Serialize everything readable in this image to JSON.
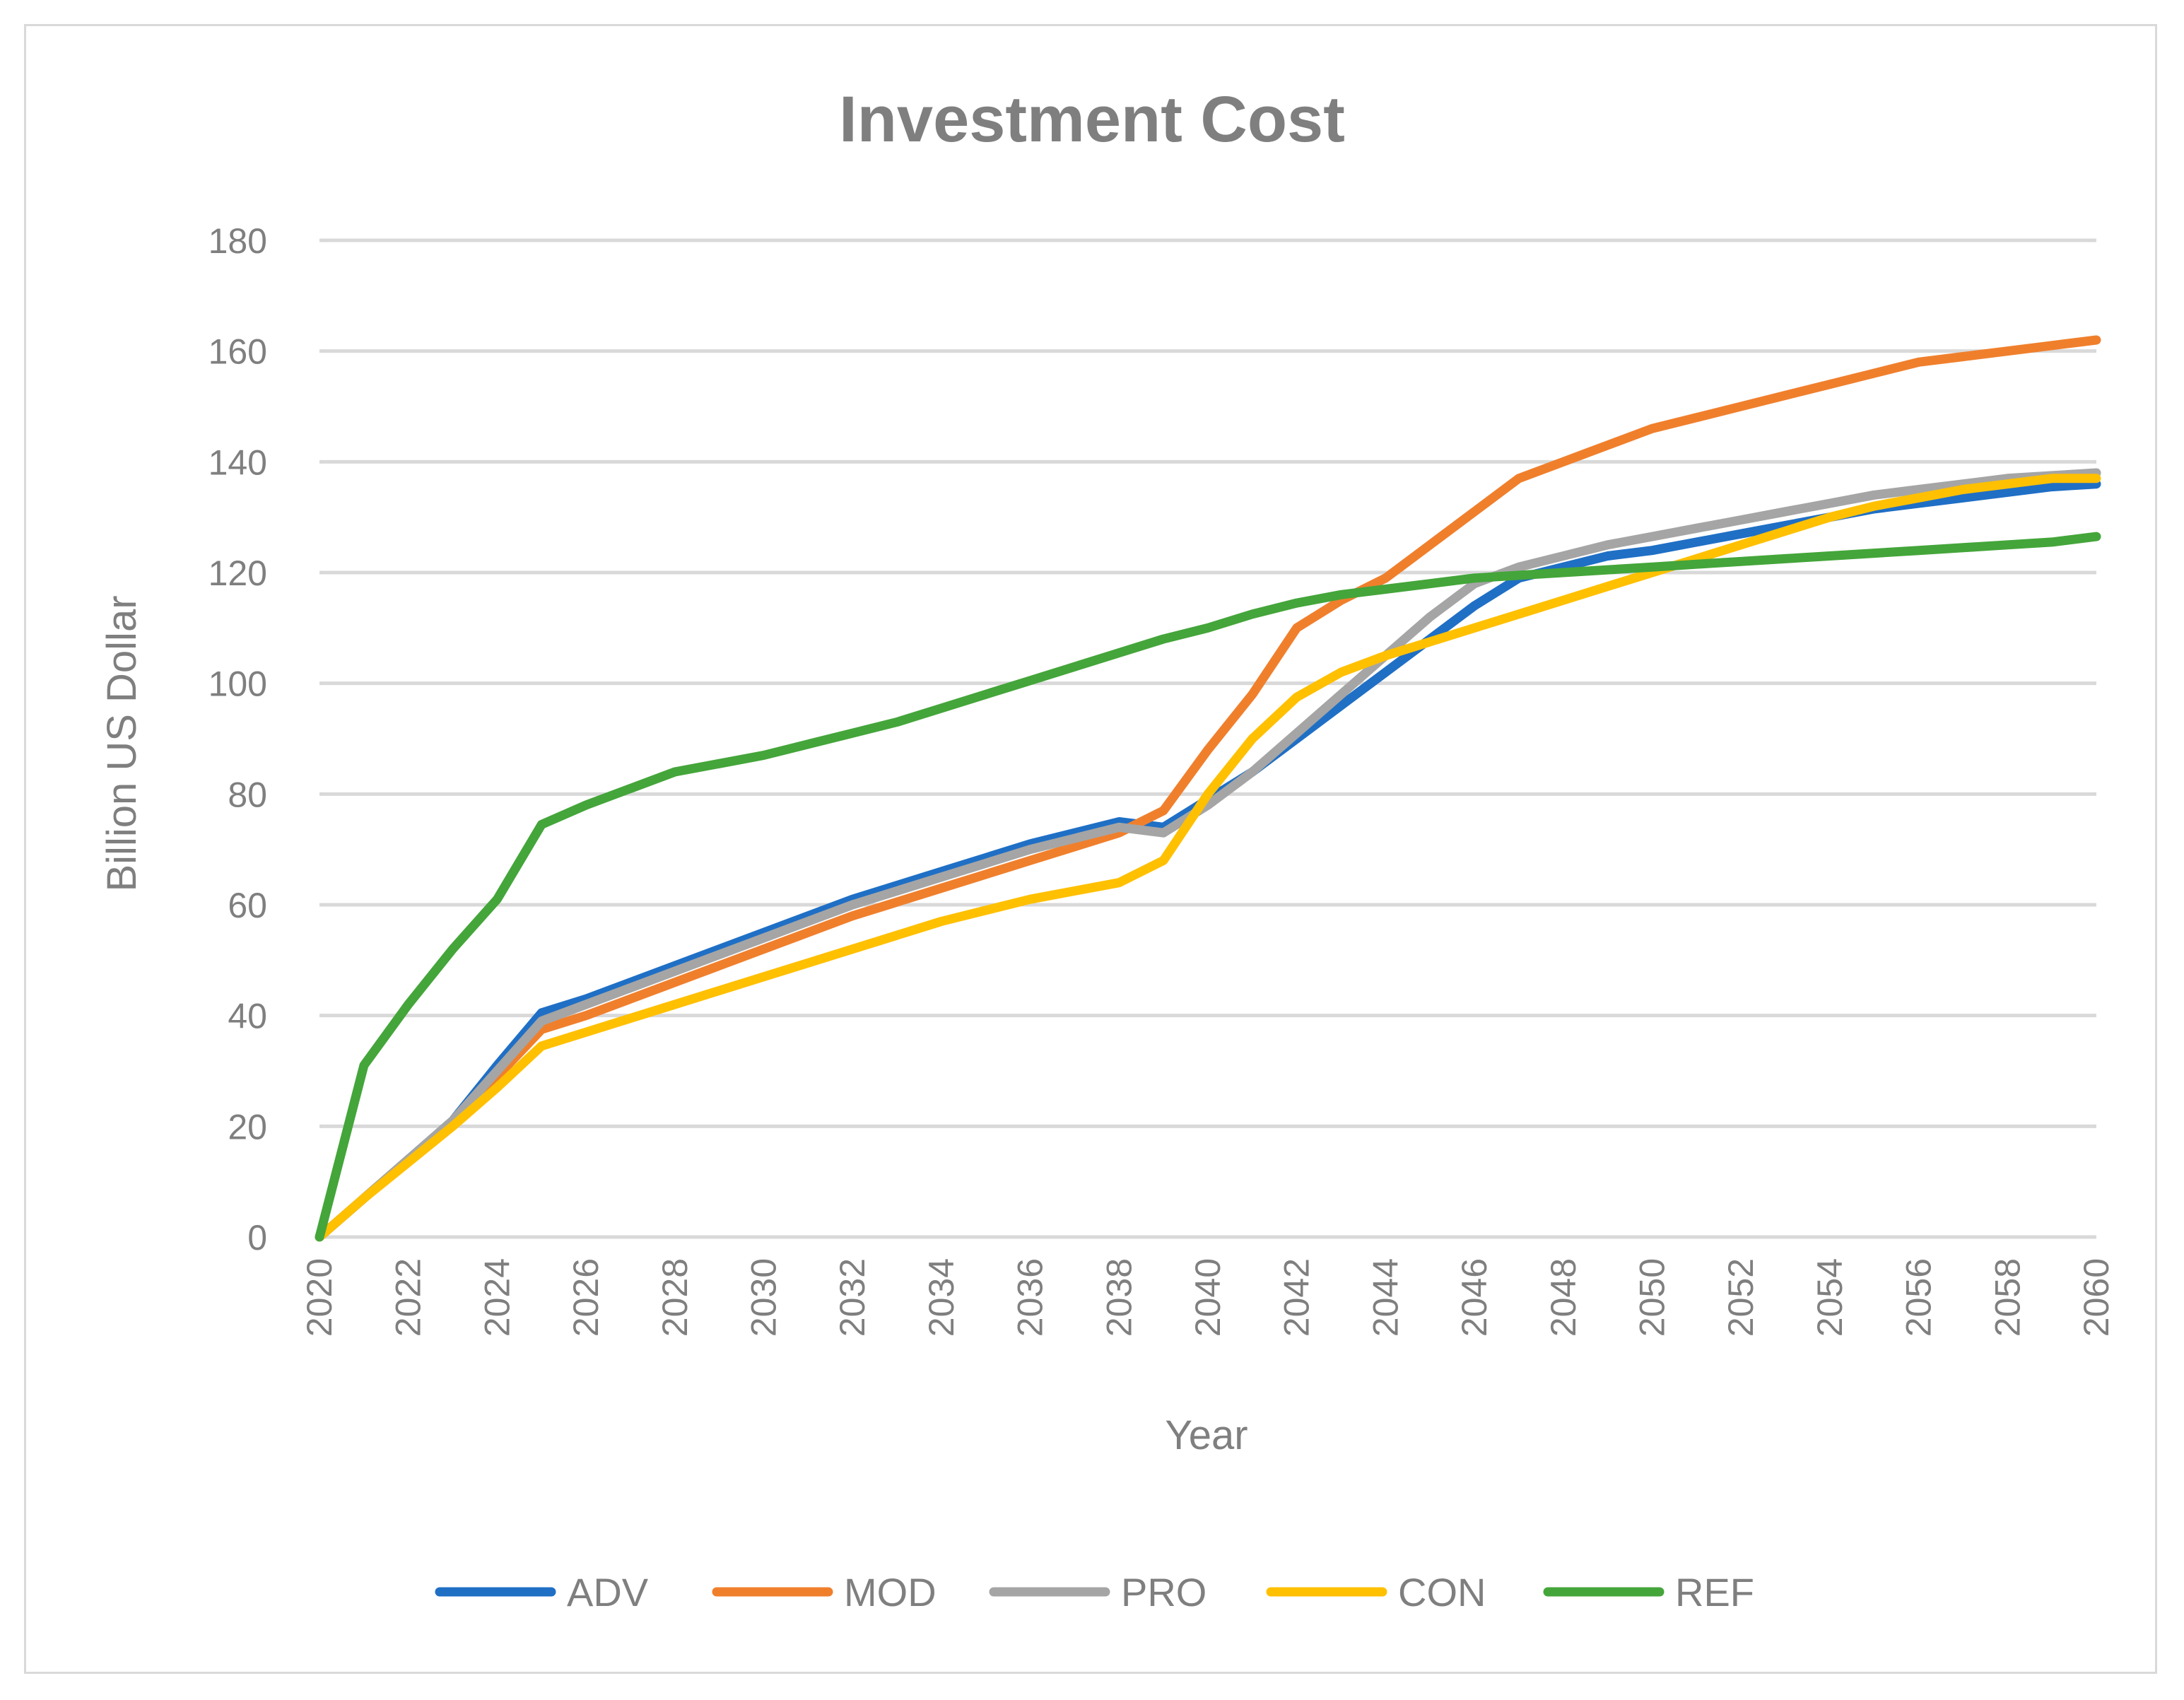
{
  "chart_data": {
    "type": "line",
    "title": "Investment Cost",
    "xlabel": "Year",
    "ylabel": "Billion US Dollar",
    "ylim": [
      0,
      180
    ],
    "yticks": [
      0,
      20,
      40,
      60,
      80,
      100,
      120,
      140,
      160,
      180
    ],
    "xtick_labels": [
      "2020",
      "2022",
      "2024",
      "2026",
      "2028",
      "2030",
      "2032",
      "2034",
      "2036",
      "2038",
      "2040",
      "2042",
      "2044",
      "2046",
      "2048",
      "2050",
      "2052",
      "2054",
      "2056",
      "2058",
      "2060"
    ],
    "x": [
      2020,
      2021,
      2022,
      2023,
      2024,
      2025,
      2026,
      2027,
      2028,
      2029,
      2030,
      2031,
      2032,
      2033,
      2034,
      2035,
      2036,
      2037,
      2038,
      2039,
      2040,
      2041,
      2042,
      2043,
      2044,
      2045,
      2046,
      2047,
      2048,
      2049,
      2050,
      2051,
      2052,
      2053,
      2054,
      2055,
      2056,
      2057,
      2058,
      2059,
      2060
    ],
    "grid": true,
    "legend_position": "bottom",
    "series": [
      {
        "name": "ADV",
        "color": "#1f6fc5",
        "values": [
          0,
          7,
          14,
          21,
          31,
          40.5,
          43,
          46,
          49,
          52,
          55,
          58,
          61,
          63.5,
          66,
          68.5,
          71,
          73,
          75,
          74,
          79,
          84,
          90,
          96,
          102,
          108,
          114,
          119,
          121,
          123,
          124,
          125.5,
          127,
          128.5,
          130,
          131.5,
          132.5,
          133.5,
          134.5,
          135.5,
          136
        ]
      },
      {
        "name": "MOD",
        "color": "#f07f2c",
        "values": [
          0,
          7,
          14,
          20.5,
          29,
          37.5,
          40,
          43,
          46,
          49,
          52,
          55,
          58,
          60.5,
          63,
          65.5,
          68,
          70.5,
          73,
          77,
          88,
          98,
          110,
          115,
          119,
          125,
          131,
          137,
          140,
          143,
          146,
          148,
          150,
          152,
          154,
          156,
          158,
          159,
          160,
          161,
          162
        ]
      },
      {
        "name": "PRO",
        "color": "#a5a5a5",
        "values": [
          0,
          7,
          14,
          21,
          30,
          39,
          42,
          45,
          48,
          51,
          54,
          57,
          60,
          62.5,
          65,
          67.5,
          70,
          72,
          74,
          73,
          78,
          84,
          91,
          98,
          105,
          112,
          118,
          121,
          123,
          125,
          126.5,
          128,
          129.5,
          131,
          132.5,
          134,
          135,
          136,
          137,
          137.5,
          138
        ]
      },
      {
        "name": "CON",
        "color": "#ffc000",
        "values": [
          0,
          7,
          13.5,
          20,
          27,
          34.5,
          37,
          39.5,
          42,
          44.5,
          47,
          49.5,
          52,
          54.5,
          57,
          59,
          61,
          62.5,
          64,
          68,
          80,
          90,
          97.5,
          102,
          105,
          107.5,
          110,
          112.5,
          115,
          117.5,
          120,
          122.5,
          125,
          127.5,
          130,
          132,
          133.5,
          135,
          136,
          137,
          137
        ]
      },
      {
        "name": "REF",
        "color": "#44a53a",
        "values": [
          0,
          31,
          42,
          52,
          61,
          74.5,
          78,
          81,
          84,
          85.5,
          87,
          89,
          91,
          93,
          95.5,
          98,
          100.5,
          103,
          105.5,
          108,
          110,
          112.5,
          114.5,
          116,
          117,
          118,
          119,
          119.5,
          120,
          120.5,
          121,
          121.5,
          122,
          122.5,
          123,
          123.5,
          124,
          124.5,
          125,
          125.5,
          126.5
        ]
      }
    ]
  }
}
